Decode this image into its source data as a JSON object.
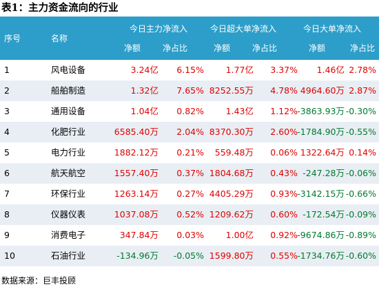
{
  "title": "表1：主力资金流向的行业",
  "header": {
    "rank": "序号",
    "name": "名称",
    "group_main": "今日主力净流入",
    "group_super": "今日超大单净流入",
    "group_large": "今日大单净流入",
    "net": "净额",
    "ratio": "净占比"
  },
  "rows": [
    {
      "rank": "1",
      "name": "风电设备",
      "main_net": "3.24亿",
      "main_ratio": "6.15%",
      "super_net": "1.77亿",
      "super_ratio": "3.37%",
      "large_net": "1.46亿",
      "large_ratio": "2.78%"
    },
    {
      "rank": "2",
      "name": "船舶制造",
      "main_net": "1.32亿",
      "main_ratio": "7.65%",
      "super_net": "8252.55万",
      "super_ratio": "4.78%",
      "large_net": "4964.60万",
      "large_ratio": "2.87%"
    },
    {
      "rank": "3",
      "name": "通用设备",
      "main_net": "1.04亿",
      "main_ratio": "0.82%",
      "super_net": "1.43亿",
      "super_ratio": "1.12%",
      "large_net": "-3863.93万",
      "large_ratio": "-0.30%"
    },
    {
      "rank": "4",
      "name": "化肥行业",
      "main_net": "6585.40万",
      "main_ratio": "2.04%",
      "super_net": "8370.30万",
      "super_ratio": "2.60%",
      "large_net": "-1784.90万",
      "large_ratio": "-0.55%"
    },
    {
      "rank": "5",
      "name": "电力行业",
      "main_net": "1882.12万",
      "main_ratio": "0.21%",
      "super_net": "559.48万",
      "super_ratio": "0.06%",
      "large_net": "1322.64万",
      "large_ratio": "0.14%"
    },
    {
      "rank": "6",
      "name": "航天航空",
      "main_net": "1557.40万",
      "main_ratio": "0.37%",
      "super_net": "1804.68万",
      "super_ratio": "0.43%",
      "large_net": "-247.28万",
      "large_ratio": "-0.06%"
    },
    {
      "rank": "7",
      "name": "环保行业",
      "main_net": "1263.14万",
      "main_ratio": "0.27%",
      "super_net": "4405.29万",
      "super_ratio": "0.93%",
      "large_net": "-3142.15万",
      "large_ratio": "-0.66%"
    },
    {
      "rank": "8",
      "name": "仪器仪表",
      "main_net": "1037.08万",
      "main_ratio": "0.52%",
      "super_net": "1209.62万",
      "super_ratio": "0.60%",
      "large_net": "-172.54万",
      "large_ratio": "-0.09%"
    },
    {
      "rank": "9",
      "name": "消费电子",
      "main_net": "347.84万",
      "main_ratio": "0.03%",
      "super_net": "1.00亿",
      "super_ratio": "0.92%",
      "large_net": "-9674.86万",
      "large_ratio": "-0.89%"
    },
    {
      "rank": "10",
      "name": "石油行业",
      "main_net": "-134.96万",
      "main_ratio": "-0.05%",
      "super_net": "1599.80万",
      "super_ratio": "0.55%",
      "large_net": "-1734.76万",
      "large_ratio": "-0.60%"
    }
  ],
  "colors": {
    "header_bg": "#2d9ec9",
    "positive": "#e00000",
    "negative": "#007a2e",
    "alt_row": "#e8eef3"
  },
  "source": "数据来源：巨丰投顾"
}
